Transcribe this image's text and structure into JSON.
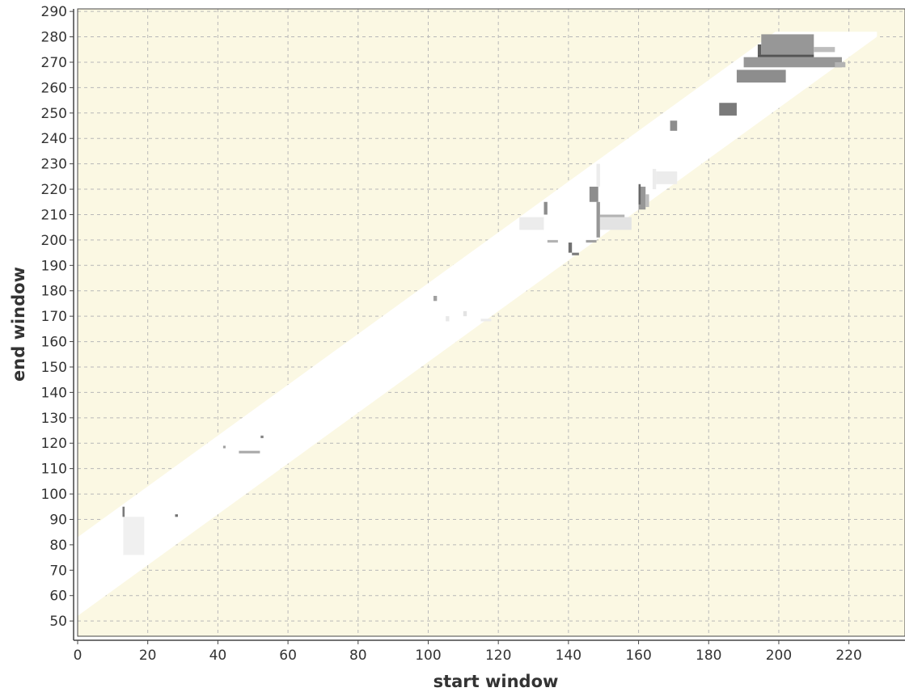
{
  "chart_data": {
    "type": "heatmap",
    "xlabel": "start window",
    "ylabel": "end window",
    "xlim": [
      0,
      236
    ],
    "ylim": [
      44,
      291
    ],
    "x_ticks": [
      0,
      20,
      40,
      60,
      80,
      100,
      120,
      140,
      160,
      180,
      200,
      220
    ],
    "y_ticks": [
      50,
      60,
      70,
      80,
      90,
      100,
      110,
      120,
      130,
      140,
      150,
      160,
      170,
      180,
      190,
      200,
      210,
      220,
      230,
      240,
      250,
      260,
      270,
      280,
      290
    ],
    "grid": true,
    "colors": {
      "background": "#fbf8e3",
      "valid_band": "#ffffff",
      "grid": "#b8b8b8",
      "axis": "#444444"
    },
    "valid_band": {
      "start_x": 0,
      "end_x": 228,
      "upper_offset": 83,
      "lower_offset": 52,
      "top_y": 282
    },
    "cells": [
      {
        "x0": 13,
        "x1": 19,
        "y0": 76,
        "y1": 91,
        "v": 0.08
      },
      {
        "x0": 12.8,
        "x1": 13.4,
        "y0": 91,
        "y1": 95,
        "v": 0.7
      },
      {
        "x0": 27.8,
        "x1": 28.6,
        "y0": 91,
        "y1": 92,
        "v": 0.75
      },
      {
        "x0": 41.5,
        "x1": 42.2,
        "y0": 118,
        "y1": 119,
        "v": 0.5
      },
      {
        "x0": 46,
        "x1": 52,
        "y0": 116,
        "y1": 117,
        "v": 0.45
      },
      {
        "x0": 52.2,
        "x1": 53,
        "y0": 122,
        "y1": 123,
        "v": 0.65
      },
      {
        "x0": 101.5,
        "x1": 102.5,
        "y0": 176,
        "y1": 178,
        "v": 0.5
      },
      {
        "x0": 105,
        "x1": 106,
        "y0": 168,
        "y1": 170,
        "v": 0.12
      },
      {
        "x0": 110,
        "x1": 111,
        "y0": 170,
        "y1": 172,
        "v": 0.15
      },
      {
        "x0": 115,
        "x1": 118,
        "y0": 168,
        "y1": 169,
        "v": 0.1
      },
      {
        "x0": 126,
        "x1": 133,
        "y0": 204,
        "y1": 209,
        "v": 0.1
      },
      {
        "x0": 133,
        "x1": 134,
        "y0": 210,
        "y1": 215,
        "v": 0.6
      },
      {
        "x0": 134,
        "x1": 137,
        "y0": 199,
        "y1": 200,
        "v": 0.4
      },
      {
        "x0": 140,
        "x1": 141,
        "y0": 195,
        "y1": 199,
        "v": 0.75
      },
      {
        "x0": 141,
        "x1": 143,
        "y0": 194,
        "y1": 195,
        "v": 0.7
      },
      {
        "x0": 145,
        "x1": 148,
        "y0": 199,
        "y1": 200,
        "v": 0.5
      },
      {
        "x0": 146,
        "x1": 148.5,
        "y0": 215,
        "y1": 221,
        "v": 0.6
      },
      {
        "x0": 148,
        "x1": 149,
        "y0": 221,
        "y1": 230,
        "v": 0.1
      },
      {
        "x0": 148,
        "x1": 149,
        "y0": 201,
        "y1": 215,
        "v": 0.55
      },
      {
        "x0": 149,
        "x1": 158,
        "y0": 204,
        "y1": 209,
        "v": 0.15
      },
      {
        "x0": 149,
        "x1": 156,
        "y0": 209,
        "y1": 210,
        "v": 0.4
      },
      {
        "x0": 160,
        "x1": 162,
        "y0": 212,
        "y1": 221,
        "v": 0.55
      },
      {
        "x0": 160,
        "x1": 160.6,
        "y0": 214,
        "y1": 222,
        "v": 0.8
      },
      {
        "x0": 162,
        "x1": 163,
        "y0": 213,
        "y1": 218,
        "v": 0.35
      },
      {
        "x0": 164,
        "x1": 165,
        "y0": 220,
        "y1": 228,
        "v": 0.1
      },
      {
        "x0": 165,
        "x1": 171,
        "y0": 222,
        "y1": 227,
        "v": 0.1
      },
      {
        "x0": 169,
        "x1": 171,
        "y0": 243,
        "y1": 247,
        "v": 0.6
      },
      {
        "x0": 183,
        "x1": 188,
        "y0": 249,
        "y1": 254,
        "v": 0.7
      },
      {
        "x0": 188,
        "x1": 202,
        "y0": 262,
        "y1": 267,
        "v": 0.6
      },
      {
        "x0": 190,
        "x1": 218,
        "y0": 268,
        "y1": 272,
        "v": 0.55
      },
      {
        "x0": 194,
        "x1": 210,
        "y0": 272,
        "y1": 273,
        "v": 0.9
      },
      {
        "x0": 194,
        "x1": 195,
        "y0": 273,
        "y1": 277,
        "v": 0.85
      },
      {
        "x0": 195,
        "x1": 210,
        "y0": 273,
        "y1": 281,
        "v": 0.55
      },
      {
        "x0": 210,
        "x1": 216,
        "y0": 274,
        "y1": 276,
        "v": 0.35
      },
      {
        "x0": 216,
        "x1": 219,
        "y0": 268,
        "y1": 270,
        "v": 0.4
      }
    ]
  }
}
